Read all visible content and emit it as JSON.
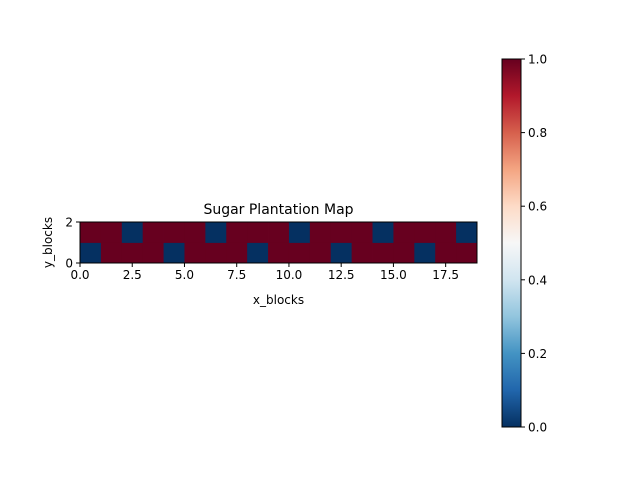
{
  "chart_data": {
    "type": "heatmap",
    "title": "Sugar Plantation Map",
    "xlabel": "x_blocks",
    "ylabel": "y_blocks",
    "xlim": [
      0,
      19
    ],
    "ylim": [
      0,
      2
    ],
    "xticks": [
      "0.0",
      "2.5",
      "5.0",
      "7.5",
      "10.0",
      "12.5",
      "15.0",
      "17.5"
    ],
    "xtick_values": [
      0,
      2.5,
      5,
      7.5,
      10,
      12.5,
      15,
      17.5
    ],
    "yticks": [
      "0",
      "2"
    ],
    "ytick_values": [
      0,
      2
    ],
    "rows": [
      {
        "y": 0,
        "values": [
          0,
          1,
          1,
          1,
          0,
          1,
          1,
          1,
          0,
          1,
          1,
          1,
          0,
          1,
          1,
          1,
          0,
          1,
          1
        ]
      },
      {
        "y": 1,
        "values": [
          1,
          1,
          0,
          1,
          1,
          1,
          0,
          1,
          1,
          1,
          0,
          1,
          1,
          1,
          0,
          1,
          1,
          1,
          0
        ]
      }
    ],
    "colormap": "RdBu_r",
    "colors": {
      "low": "#053061",
      "high": "#67001f"
    },
    "colorbar": {
      "range": [
        0,
        1
      ],
      "ticks": [
        "0.0",
        "0.2",
        "0.4",
        "0.6",
        "0.8",
        "1.0"
      ],
      "tick_values": [
        0,
        0.2,
        0.4,
        0.6,
        0.8,
        1.0
      ]
    }
  }
}
